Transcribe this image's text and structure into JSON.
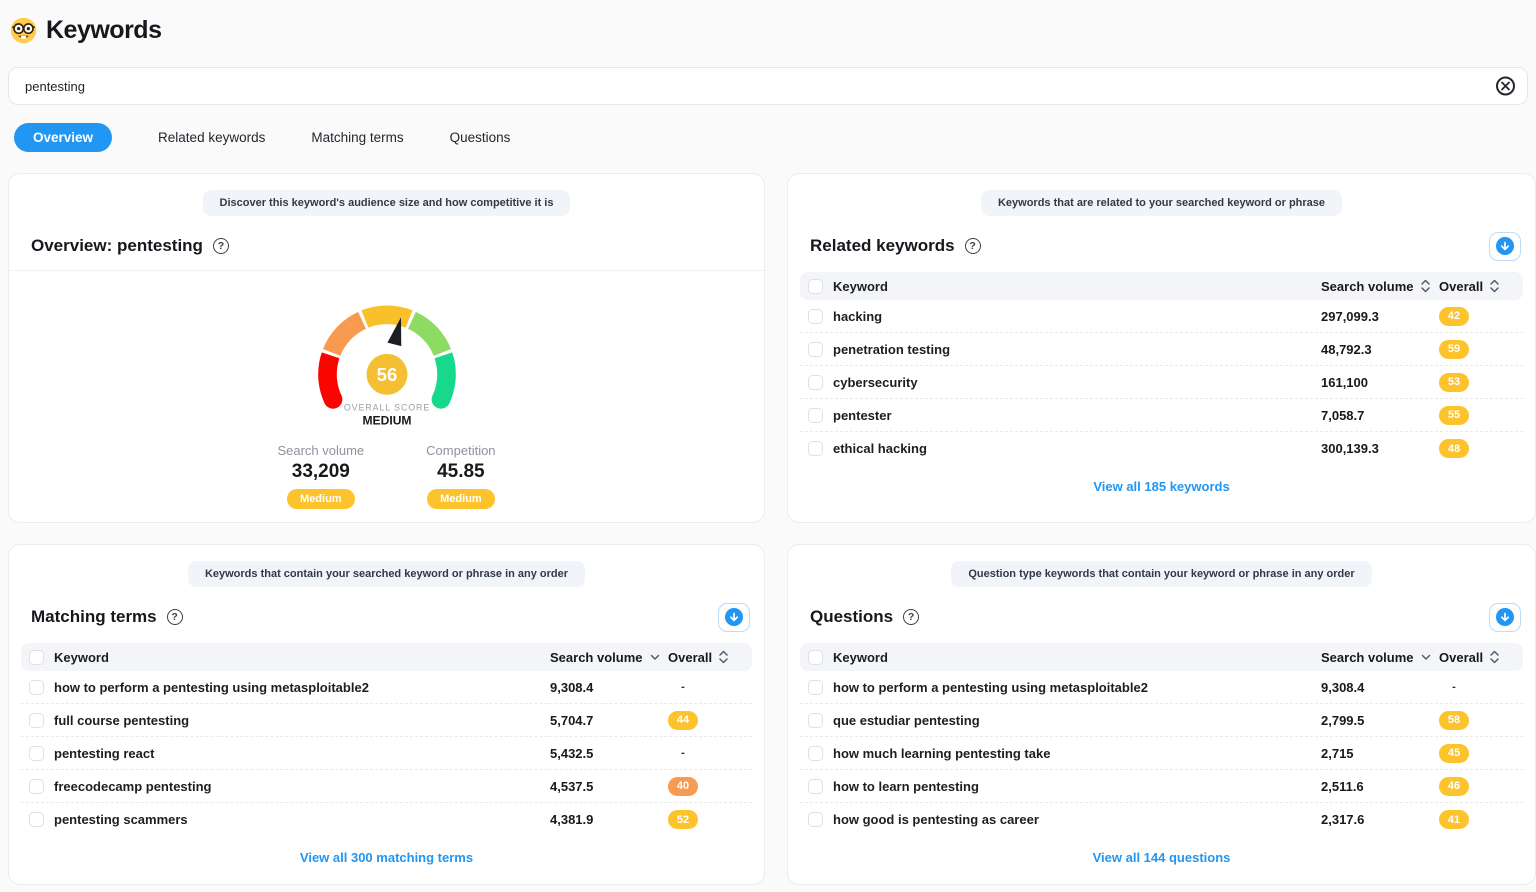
{
  "header": {
    "title": "Keywords",
    "emoji": "nerd-face"
  },
  "search": {
    "value": "pentesting"
  },
  "tabs": [
    {
      "label": "Overview",
      "active": true
    },
    {
      "label": "Related keywords",
      "active": false
    },
    {
      "label": "Matching terms",
      "active": false
    },
    {
      "label": "Questions",
      "active": false
    }
  ],
  "colors": {
    "accent_blue": "#2196f3",
    "badge_yellow": "#fcc32c",
    "badge_orange": "#f79b52",
    "gauge_segments": [
      "#fa0400",
      "#f89b51",
      "#f8c12c",
      "#8edb64",
      "#17d98b"
    ],
    "gauge_center": "#f4bf33",
    "needle": "#1b1e23"
  },
  "overview_card": {
    "tooltip": "Discover this keyword's audience size and how competitive it is",
    "title": "Overview: pentesting",
    "gauge": {
      "value": 56,
      "min": 0,
      "max": 100,
      "score_label": "OVERALL SCORE",
      "score_level": "MEDIUM"
    },
    "stats": [
      {
        "label": "Search volume",
        "value": "33,209",
        "level": "Medium"
      },
      {
        "label": "Competition",
        "value": "45.85",
        "level": "Medium"
      }
    ]
  },
  "related_card": {
    "tooltip": "Keywords that are related to your searched keyword or phrase",
    "title": "Related keywords",
    "columns": {
      "keyword": "Keyword",
      "search_volume": "Search volume",
      "overall": "Overall"
    },
    "rows": [
      {
        "keyword": "hacking",
        "search_volume": "297,099.3",
        "overall": "42",
        "badge": "yellow"
      },
      {
        "keyword": "penetration testing",
        "search_volume": "48,792.3",
        "overall": "59",
        "badge": "yellow"
      },
      {
        "keyword": "cybersecurity",
        "search_volume": "161,100",
        "overall": "53",
        "badge": "yellow"
      },
      {
        "keyword": "pentester",
        "search_volume": "7,058.7",
        "overall": "55",
        "badge": "yellow"
      },
      {
        "keyword": "ethical hacking",
        "search_volume": "300,139.3",
        "overall": "48",
        "badge": "yellow"
      }
    ],
    "view_all": "View all 185 keywords"
  },
  "matching_card": {
    "tooltip": "Keywords that contain your searched keyword or phrase in any order",
    "title": "Matching terms",
    "columns": {
      "keyword": "Keyword",
      "search_volume": "Search volume",
      "overall": "Overall"
    },
    "rows": [
      {
        "keyword": "how to perform a pentesting using metasploitable2",
        "search_volume": "9,308.4",
        "overall": "-",
        "badge": "none"
      },
      {
        "keyword": "full course pentesting",
        "search_volume": "5,704.7",
        "overall": "44",
        "badge": "yellow"
      },
      {
        "keyword": "pentesting react",
        "search_volume": "5,432.5",
        "overall": "-",
        "badge": "none"
      },
      {
        "keyword": "freecodecamp pentesting",
        "search_volume": "4,537.5",
        "overall": "40",
        "badge": "orange"
      },
      {
        "keyword": "pentesting scammers",
        "search_volume": "4,381.9",
        "overall": "52",
        "badge": "yellow"
      }
    ],
    "view_all": "View all 300 matching terms"
  },
  "questions_card": {
    "tooltip": "Question type keywords that contain your keyword or phrase in any order",
    "title": "Questions",
    "columns": {
      "keyword": "Keyword",
      "search_volume": "Search volume",
      "overall": "Overall"
    },
    "rows": [
      {
        "keyword": "how to perform a pentesting using metasploitable2",
        "search_volume": "9,308.4",
        "overall": "-",
        "badge": "none"
      },
      {
        "keyword": "que estudiar pentesting",
        "search_volume": "2,799.5",
        "overall": "58",
        "badge": "yellow"
      },
      {
        "keyword": "how much learning pentesting take",
        "search_volume": "2,715",
        "overall": "45",
        "badge": "yellow"
      },
      {
        "keyword": "how to learn pentesting",
        "search_volume": "2,511.6",
        "overall": "46",
        "badge": "yellow"
      },
      {
        "keyword": "how good is pentesting as career",
        "search_volume": "2,317.6",
        "overall": "41",
        "badge": "yellow"
      }
    ],
    "view_all": "View all 144 questions"
  },
  "chart_data": {
    "type": "gauge",
    "title": "Overview: pentesting",
    "value": 56,
    "min": 0,
    "max": 100,
    "label": "OVERALL SCORE",
    "level": "MEDIUM",
    "segments": 5,
    "related_values": {
      "search_volume": 33209,
      "competition": 45.85
    }
  }
}
